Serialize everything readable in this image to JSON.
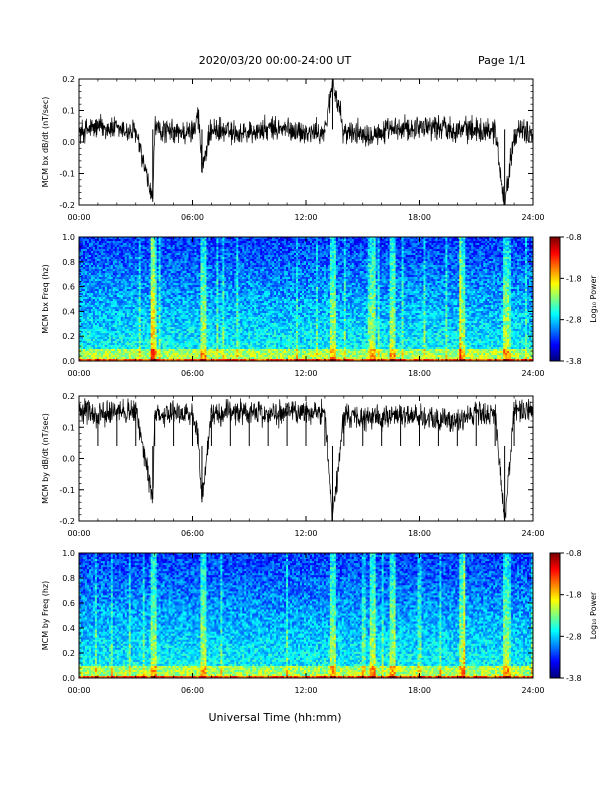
{
  "header": {
    "title": "2020/03/20  00:00-24:00 UT",
    "page": "Page 1/1"
  },
  "chart_data": [
    {
      "type": "line",
      "ylabel": "MCM bx dB/dt (nT/sec)",
      "xlabel": "",
      "x_ticks": [
        "00:00",
        "06:00",
        "12:00",
        "18:00",
        "24:00"
      ],
      "y_ticks": [
        "-0.2",
        "-0.1",
        "0.0",
        "0.1",
        "0.2"
      ],
      "xlim": [
        0,
        24
      ],
      "ylim": [
        -0.2,
        0.2
      ],
      "series": [
        {
          "x": [
            0,
            1,
            2,
            3,
            3.9,
            4,
            5,
            6,
            6.3,
            6.5,
            7,
            8,
            9,
            10,
            11,
            12,
            13,
            13.4,
            14,
            15,
            16,
            17,
            18,
            19,
            20,
            21,
            22,
            22.5,
            23,
            24
          ],
          "values": [
            0.03,
            0.05,
            0.04,
            0.03,
            -0.19,
            0.04,
            0.03,
            0.03,
            0.1,
            -0.08,
            0.04,
            0.03,
            0.03,
            0.04,
            0.04,
            0.03,
            0.03,
            0.2,
            0.03,
            0.03,
            0.03,
            0.04,
            0.05,
            0.05,
            0.04,
            0.04,
            0.04,
            -0.2,
            0.03,
            0.03
          ]
        }
      ]
    },
    {
      "type": "heatmap",
      "ylabel": "MCM bx Freq (hz)",
      "xlabel": "",
      "x_ticks": [
        "00:00",
        "06:00",
        "12:00",
        "18:00",
        "24:00"
      ],
      "y_ticks": [
        "0.0",
        "0.2",
        "0.4",
        "0.6",
        "0.8",
        "1.0"
      ],
      "xlim": [
        0,
        24
      ],
      "ylim": [
        0,
        1.0
      ],
      "colorbar": {
        "label": "Log₁₀ Power",
        "ticks": [
          "-0.8",
          "-1.8",
          "-2.8",
          "-3.8"
        ],
        "range": [
          -3.8,
          -0.8
        ]
      }
    },
    {
      "type": "line",
      "ylabel": "MCM by dB/dt (nT/sec)",
      "xlabel": "",
      "x_ticks": [
        "00:00",
        "06:00",
        "12:00",
        "18:00",
        "24:00"
      ],
      "y_ticks": [
        "-0.2",
        "-0.1",
        "0.0",
        "0.1",
        "0.2"
      ],
      "xlim": [
        0,
        24
      ],
      "ylim": [
        -0.2,
        0.2
      ],
      "series": [
        {
          "x": [
            0,
            1,
            2,
            3,
            3.9,
            4,
            5,
            6,
            6.3,
            6.5,
            7,
            8,
            9,
            10,
            11,
            12,
            13,
            13.4,
            14,
            15,
            16,
            17,
            18,
            19,
            20,
            21,
            22,
            22.5,
            23,
            24
          ],
          "values": [
            0.15,
            0.14,
            0.15,
            0.15,
            -0.13,
            0.14,
            0.15,
            0.14,
            0.08,
            -0.14,
            0.14,
            0.15,
            0.15,
            0.14,
            0.15,
            0.15,
            0.15,
            -0.2,
            0.14,
            0.13,
            0.13,
            0.14,
            0.14,
            0.12,
            0.13,
            0.14,
            0.14,
            -0.2,
            0.15,
            0.15
          ]
        }
      ]
    },
    {
      "type": "heatmap",
      "ylabel": "MCM by Freq (hz)",
      "xlabel": "Universal Time (hh:mm)",
      "x_ticks": [
        "00:00",
        "06:00",
        "12:00",
        "18:00",
        "24:00"
      ],
      "y_ticks": [
        "0.0",
        "0.2",
        "0.4",
        "0.6",
        "0.8",
        "1.0"
      ],
      "xlim": [
        0,
        24
      ],
      "ylim": [
        0,
        1.0
      ],
      "colorbar": {
        "label": "Log₁₀ Power",
        "ticks": [
          "-0.8",
          "-1.8",
          "-2.8",
          "-3.8"
        ],
        "range": [
          -3.8,
          -0.8
        ]
      }
    }
  ]
}
